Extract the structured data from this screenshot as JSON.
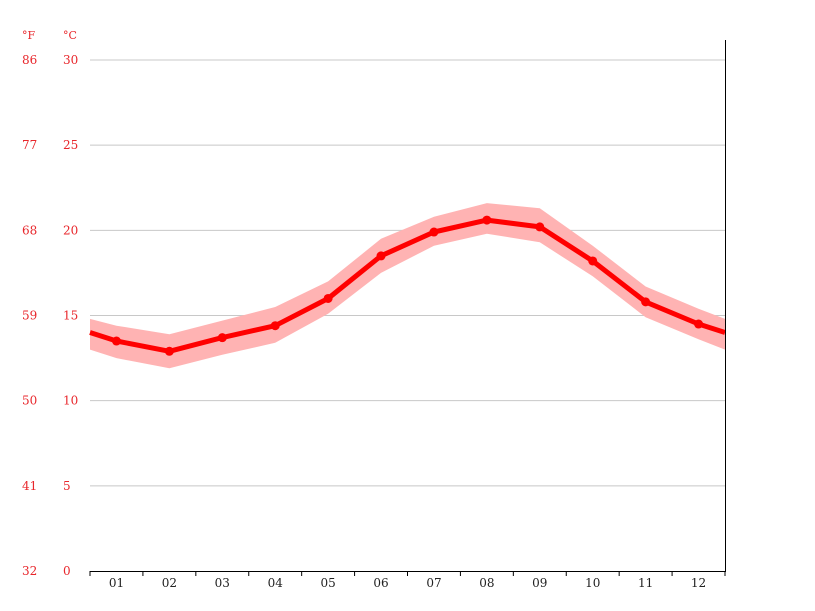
{
  "chart_data": {
    "type": "line",
    "categories": [
      "01",
      "02",
      "03",
      "04",
      "05",
      "06",
      "07",
      "08",
      "09",
      "10",
      "11",
      "12"
    ],
    "series": [
      {
        "values": [
          13.5,
          12.9,
          13.7,
          14.4,
          16.0,
          18.5,
          19.9,
          20.6,
          20.2,
          18.2,
          15.8,
          14.5
        ],
        "min": [
          12.5,
          11.9,
          12.7,
          13.4,
          15.1,
          17.5,
          19.1,
          19.8,
          19.3,
          17.3,
          14.9,
          13.6
        ],
        "max": [
          14.4,
          13.9,
          14.7,
          15.5,
          17.0,
          19.5,
          20.8,
          21.6,
          21.3,
          19.1,
          16.7,
          15.4
        ]
      }
    ],
    "edge_left": {
      "value": 14.0,
      "min": 13.0,
      "max": 14.8
    },
    "edge_right": {
      "value": 14.0,
      "min": 13.0,
      "max": 14.8
    },
    "ylim": [
      0,
      30
    ],
    "y_ticks_c": [
      "0",
      "5",
      "10",
      "15",
      "20",
      "25",
      "30"
    ],
    "y_ticks_f": [
      "32",
      "41",
      "50",
      "59",
      "68",
      "77",
      "86"
    ],
    "unit_f": "°F",
    "unit_c": "°C",
    "grid": true,
    "colors": {
      "line": "#ff0000",
      "band": "#ffb3b3",
      "grid": "#c8c8c8",
      "labels": "#e8262b",
      "axis": "#000000"
    }
  }
}
